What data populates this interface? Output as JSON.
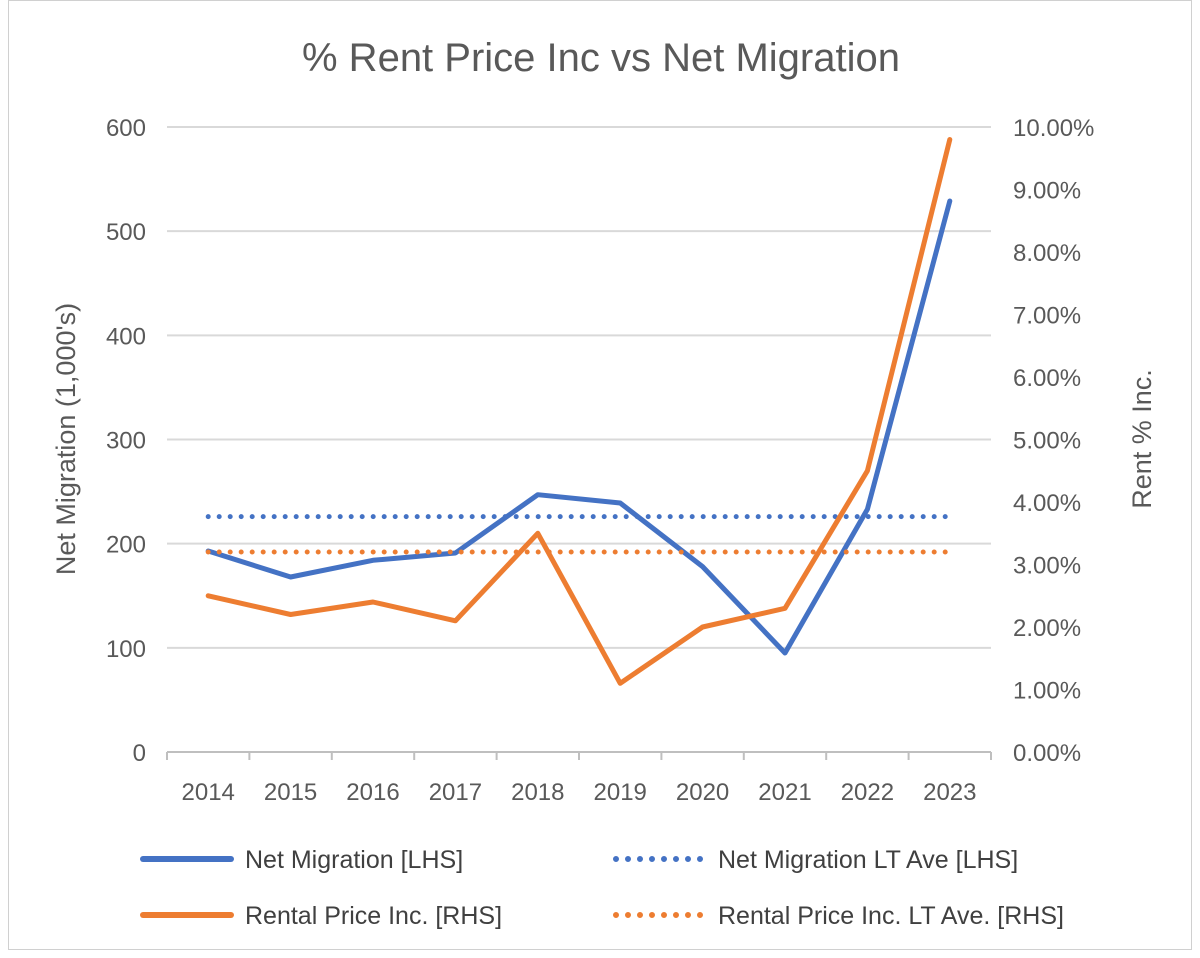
{
  "chart_data": {
    "type": "line",
    "title": "% Rent Price Inc vs Net Migration",
    "categories": [
      "2014",
      "2015",
      "2016",
      "2017",
      "2018",
      "2019",
      "2020",
      "2021",
      "2022",
      "2023"
    ],
    "ylabel_left": "Net Migration (1,000's)",
    "ylabel_right": "Rent % Inc.",
    "ylim_left": [
      0,
      600
    ],
    "yticks_left": [
      "0",
      "100",
      "200",
      "300",
      "400",
      "500",
      "600"
    ],
    "ylim_right": [
      0,
      0.1
    ],
    "yticks_right": [
      "0.00%",
      "1.00%",
      "2.00%",
      "3.00%",
      "4.00%",
      "5.00%",
      "6.00%",
      "7.00%",
      "8.00%",
      "9.00%",
      "10.00%"
    ],
    "grid": true,
    "legend_position": "bottom",
    "series": [
      {
        "name": "Net Migration [LHS]",
        "axis": "left",
        "style": "solid",
        "color": "#4472C4",
        "values": [
          193,
          168,
          184,
          191,
          247,
          239,
          178,
          95,
          233,
          529
        ]
      },
      {
        "name": "Net Migration LT Ave [LHS]",
        "axis": "left",
        "style": "dotted",
        "color": "#4472C4",
        "values": [
          226,
          226,
          226,
          226,
          226,
          226,
          226,
          226,
          226,
          226
        ]
      },
      {
        "name": "Rental Price Inc. [RHS]",
        "axis": "right",
        "style": "solid",
        "color": "#ED7D31",
        "values": [
          0.025,
          0.022,
          0.024,
          0.021,
          0.035,
          0.011,
          0.02,
          0.023,
          0.045,
          0.098
        ]
      },
      {
        "name": "Rental Price Inc. LT Ave. [RHS]",
        "axis": "right",
        "style": "dotted",
        "color": "#ED7D31",
        "values": [
          0.032,
          0.032,
          0.032,
          0.032,
          0.032,
          0.032,
          0.032,
          0.032,
          0.032,
          0.032
        ]
      }
    ]
  }
}
